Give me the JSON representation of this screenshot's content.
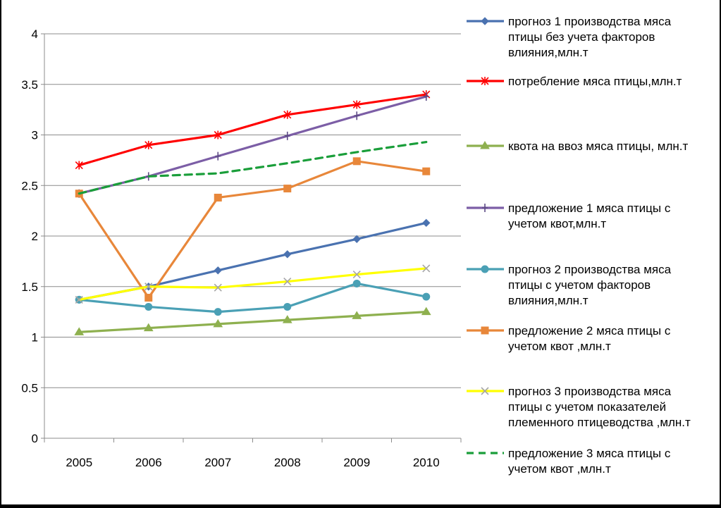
{
  "chart_data": {
    "type": "line",
    "x": [
      "2005",
      "2006",
      "2007",
      "2008",
      "2009",
      "2010"
    ],
    "ylim": [
      0,
      4
    ],
    "yticks": [
      "0",
      "0.5",
      "1",
      "1.5",
      "2",
      "2.5",
      "3",
      "3.5",
      "4"
    ],
    "grid": true,
    "legend_position": "right",
    "series": [
      {
        "name": "прогноз 1 производства мяса птицы без учета факторов влияния,млн.т",
        "legend_lines": [
          "прогноз 1 производства мяса",
          "птицы без учета факторов",
          "влияния,млн.т"
        ],
        "values": [
          1.37,
          1.5,
          1.66,
          1.82,
          1.97,
          2.13
        ],
        "color": "#4a72b0",
        "marker": "diamond",
        "dash": false
      },
      {
        "name": "потребление мяса птицы,млн.т",
        "legend_lines": [
          "потребление мяса птицы,млн.т"
        ],
        "values": [
          2.7,
          2.9,
          3.0,
          3.2,
          3.3,
          3.4
        ],
        "color": "#ff0000",
        "marker": "star",
        "dash": false
      },
      {
        "name": "квота на ввоз мяса птицы, млн.т",
        "legend_lines": [
          "квота на ввоз мяса птицы, млн.т"
        ],
        "values": [
          1.05,
          1.09,
          1.13,
          1.17,
          1.21,
          1.25
        ],
        "color": "#8eb04f",
        "marker": "triangle",
        "dash": false
      },
      {
        "name": "предложение 1 мяса птицы с учетом квот,млн.т",
        "legend_lines": [
          "предложение 1 мяса птицы с",
          "учетом квот,млн.т"
        ],
        "values": [
          2.42,
          2.59,
          2.79,
          2.99,
          3.19,
          3.38
        ],
        "color": "#7c5ea6",
        "marker": "plus",
        "dash": false
      },
      {
        "name": "прогноз 2 производства мяса птицы с учетом факторов влияния,млн.т",
        "legend_lines": [
          "прогноз 2 производства мяса",
          "птицы с учетом факторов",
          "влияния,млн.т"
        ],
        "values": [
          1.37,
          1.3,
          1.25,
          1.3,
          1.53,
          1.4
        ],
        "color": "#4aa0b5",
        "marker": "circle",
        "dash": false
      },
      {
        "name": "предложение 2 мяса птицы с учетом квот ,млн.т",
        "legend_lines": [
          "предложение 2 мяса птицы с",
          "учетом квот ,млн.т"
        ],
        "values": [
          2.42,
          1.39,
          2.38,
          2.47,
          2.74,
          2.64
        ],
        "color": "#e8873a",
        "marker": "square",
        "dash": false
      },
      {
        "name": "прогноз 3 производства мяса птицы с учетом показателей племенного птицеводства ,млн.т",
        "legend_lines": [
          "прогноз 3 производства мяса",
          "птицы с учетом показателей",
          "племенного птицеводства ,млн.т"
        ],
        "values": [
          1.37,
          1.5,
          1.49,
          1.55,
          1.62,
          1.68
        ],
        "color": "#ffff00",
        "marker": "x",
        "dash": false
      },
      {
        "name": "предложение 3 мяса птицы с учетом квот ,млн.т",
        "legend_lines": [
          "предложение 3 мяса птицы с",
          "учетом квот ,млн.т"
        ],
        "values": [
          2.42,
          2.59,
          2.62,
          2.72,
          2.83,
          2.93
        ],
        "color": "#1a9e3a",
        "marker": "none",
        "dash": true
      }
    ]
  }
}
